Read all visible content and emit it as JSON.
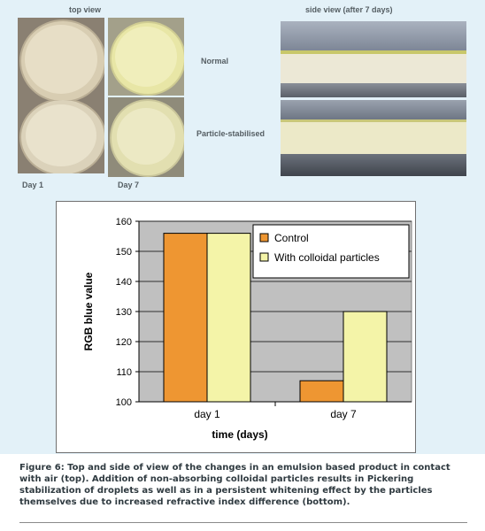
{
  "photos": {
    "top_view_label": "top view",
    "side_view_label": "side view (after 7 days)",
    "row_normal_label": "Normal",
    "row_particle_label": "Particle-stabilised",
    "day1_label": "Day 1",
    "day7_label": "Day 7"
  },
  "chart_data": {
    "type": "bar",
    "categories": [
      "day 1",
      "day 7"
    ],
    "series": [
      {
        "name": "Control",
        "values": [
          156,
          107
        ],
        "color": "#ee9632"
      },
      {
        "name": "With colloidal particles",
        "values": [
          156,
          130
        ],
        "color": "#f4f4a8"
      }
    ],
    "xlabel": "time (days)",
    "ylabel": "RGB blue value",
    "ylim": [
      100,
      160
    ],
    "yticks": [
      100,
      110,
      120,
      130,
      140,
      150,
      160
    ],
    "grid": true,
    "plot_background": "#c0c0c0",
    "legend_position": "top-right"
  },
  "caption": "Figure 6: Top and side of view of the changes in an emulsion based product in contact with air (top). Addition of non-absorbing colloidal particles results in Pickering stabilization of droplets as well as in a persistent whitening effect by the particles themselves due to increased refractive index difference (bottom)."
}
